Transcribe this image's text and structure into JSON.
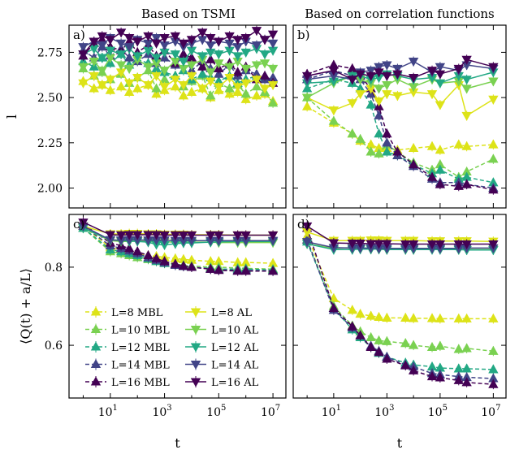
{
  "figure": {
    "col_titles": [
      "Based on TSMI",
      "Based on correlation functions"
    ]
  },
  "series_styles": [
    {
      "name": "L=8 MBL",
      "color": "#dde318",
      "dashed": true,
      "marker": "up"
    },
    {
      "name": "L=10 MBL",
      "color": "#7ad151",
      "dashed": true,
      "marker": "up"
    },
    {
      "name": "L=12 MBL",
      "color": "#22a884",
      "dashed": true,
      "marker": "up"
    },
    {
      "name": "L=14 MBL",
      "color": "#414487",
      "dashed": true,
      "marker": "up"
    },
    {
      "name": "L=16 MBL",
      "color": "#440154",
      "dashed": true,
      "marker": "up"
    },
    {
      "name": "L=8 AL",
      "color": "#dde318",
      "dashed": false,
      "marker": "down"
    },
    {
      "name": "L=10 AL",
      "color": "#7ad151",
      "dashed": false,
      "marker": "down"
    },
    {
      "name": "L=12 AL",
      "color": "#22a884",
      "dashed": false,
      "marker": "down"
    },
    {
      "name": "L=14 AL",
      "color": "#414487",
      "dashed": false,
      "marker": "down"
    },
    {
      "name": "L=16 AL",
      "color": "#440154",
      "dashed": false,
      "marker": "down"
    }
  ],
  "chart_data": [
    {
      "panel": "a)",
      "type": "line",
      "xscale": "log",
      "xlim": [
        0.3,
        30000000
      ],
      "ylim": [
        1.89,
        2.9
      ],
      "yticks": [
        2.0,
        2.25,
        2.5,
        2.75
      ],
      "ytick_labels": [
        "2.00",
        "2.25",
        "2.50",
        "2.75"
      ],
      "ylabel": "l",
      "xlabel": "",
      "show_xtick_labels": false,
      "show_ytick_labels": true,
      "x": [
        1,
        2.5,
        5,
        10,
        25,
        50,
        100,
        250,
        500,
        1000,
        2500,
        5000,
        10000,
        25000,
        50000,
        100000,
        250000,
        500000,
        1000000,
        2500000,
        5000000,
        10000000
      ],
      "series": [
        {
          "values": [
            2.59,
            2.55,
            2.57,
            2.54,
            2.56,
            2.53,
            2.55,
            2.57,
            2.52,
            2.54,
            2.56,
            2.51,
            2.53,
            2.55,
            2.5,
            2.54,
            2.52,
            2.53,
            2.49,
            2.51,
            2.52,
            2.48
          ]
        },
        {
          "values": [
            2.66,
            2.62,
            2.64,
            2.6,
            2.63,
            2.58,
            2.61,
            2.65,
            2.55,
            2.6,
            2.62,
            2.56,
            2.59,
            2.62,
            2.51,
            2.58,
            2.55,
            2.57,
            2.52,
            2.56,
            2.53,
            2.47
          ]
        },
        {
          "values": [
            2.7,
            2.67,
            2.72,
            2.69,
            2.74,
            2.68,
            2.71,
            2.69,
            2.66,
            2.64,
            2.62,
            2.65,
            2.6,
            2.63,
            2.61,
            2.59,
            2.62,
            2.58,
            2.6,
            2.62,
            2.61,
            2.6
          ]
        },
        {
          "values": [
            2.76,
            2.72,
            2.78,
            2.73,
            2.77,
            2.72,
            2.7,
            2.74,
            2.69,
            2.72,
            2.68,
            2.73,
            2.65,
            2.7,
            2.66,
            2.63,
            2.68,
            2.62,
            2.65,
            2.63,
            2.6,
            2.61
          ]
        },
        {
          "values": [
            2.73,
            2.8,
            2.82,
            2.78,
            2.76,
            2.81,
            2.75,
            2.79,
            2.73,
            2.76,
            2.69,
            2.74,
            2.72,
            2.67,
            2.71,
            2.66,
            2.69,
            2.64,
            2.67,
            2.6,
            2.62,
            2.58
          ]
        },
        {
          "values": [
            2.58,
            2.62,
            2.57,
            2.6,
            2.64,
            2.58,
            2.61,
            2.57,
            2.62,
            2.56,
            2.6,
            2.57,
            2.62,
            2.55,
            2.59,
            2.56,
            2.61,
            2.56,
            2.58,
            2.6,
            2.55,
            2.57
          ]
        },
        {
          "values": [
            2.67,
            2.7,
            2.65,
            2.72,
            2.68,
            2.66,
            2.71,
            2.67,
            2.69,
            2.65,
            2.7,
            2.66,
            2.68,
            2.71,
            2.64,
            2.69,
            2.67,
            2.7,
            2.66,
            2.68,
            2.69,
            2.66
          ]
        },
        {
          "values": [
            2.74,
            2.77,
            2.72,
            2.76,
            2.74,
            2.77,
            2.73,
            2.76,
            2.72,
            2.75,
            2.74,
            2.7,
            2.76,
            2.73,
            2.75,
            2.74,
            2.76,
            2.73,
            2.75,
            2.77,
            2.74,
            2.76
          ]
        },
        {
          "values": [
            2.78,
            2.81,
            2.79,
            2.83,
            2.8,
            2.78,
            2.82,
            2.8,
            2.83,
            2.79,
            2.81,
            2.78,
            2.8,
            2.82,
            2.79,
            2.81,
            2.8,
            2.78,
            2.81,
            2.79,
            2.82,
            2.8
          ]
        },
        {
          "values": [
            2.74,
            2.81,
            2.84,
            2.82,
            2.86,
            2.83,
            2.81,
            2.84,
            2.8,
            2.83,
            2.84,
            2.8,
            2.82,
            2.86,
            2.83,
            2.81,
            2.84,
            2.82,
            2.83,
            2.87,
            2.82,
            2.85
          ]
        }
      ]
    },
    {
      "panel": "b)",
      "type": "line",
      "xscale": "log",
      "xlim": [
        0.3,
        30000000
      ],
      "ylim": [
        1.89,
        2.9
      ],
      "yticks": [
        2.0,
        2.25,
        2.5,
        2.75
      ],
      "ytick_labels": [
        "2.00",
        "2.25",
        "2.50",
        "2.75"
      ],
      "ylabel": "",
      "xlabel": "",
      "show_xtick_labels": false,
      "show_ytick_labels": false,
      "x": [
        1,
        10,
        50,
        100,
        250,
        500,
        1000,
        2500,
        10000,
        50000,
        100000,
        500000,
        1000000,
        10000000
      ],
      "series": [
        {
          "values": [
            2.45,
            2.36,
            2.3,
            2.26,
            2.24,
            2.22,
            2.22,
            2.21,
            2.22,
            2.23,
            2.21,
            2.24,
            2.23,
            2.24
          ]
        },
        {
          "values": [
            2.5,
            2.37,
            2.3,
            2.27,
            2.2,
            2.19,
            2.24,
            2.2,
            2.14,
            2.1,
            2.13,
            2.06,
            2.09,
            2.16
          ]
        },
        {
          "values": [
            2.55,
            2.6,
            2.58,
            2.55,
            2.46,
            2.3,
            2.2,
            2.18,
            2.13,
            2.08,
            2.1,
            2.05,
            2.06,
            2.03
          ]
        },
        {
          "values": [
            2.6,
            2.65,
            2.62,
            2.6,
            2.52,
            2.4,
            2.25,
            2.18,
            2.12,
            2.05,
            2.03,
            2.03,
            2.02,
            2.0
          ]
        },
        {
          "values": [
            2.63,
            2.68,
            2.66,
            2.62,
            2.55,
            2.45,
            2.3,
            2.2,
            2.13,
            2.06,
            2.02,
            2.01,
            2.02,
            1.99
          ]
        },
        {
          "values": [
            2.5,
            2.43,
            2.47,
            2.52,
            2.55,
            2.48,
            2.52,
            2.51,
            2.53,
            2.52,
            2.46,
            2.57,
            2.4,
            2.49
          ]
        },
        {
          "values": [
            2.5,
            2.58,
            2.62,
            2.6,
            2.58,
            2.55,
            2.57,
            2.6,
            2.56,
            2.6,
            2.58,
            2.59,
            2.55,
            2.59
          ]
        },
        {
          "values": [
            2.58,
            2.59,
            2.62,
            2.62,
            2.6,
            2.61,
            2.63,
            2.62,
            2.6,
            2.61,
            2.58,
            2.62,
            2.6,
            2.64
          ]
        },
        {
          "values": [
            2.6,
            2.62,
            2.6,
            2.64,
            2.65,
            2.67,
            2.68,
            2.66,
            2.7,
            2.64,
            2.67,
            2.65,
            2.68,
            2.66
          ]
        },
        {
          "values": [
            2.62,
            2.65,
            2.6,
            2.63,
            2.62,
            2.64,
            2.62,
            2.63,
            2.61,
            2.65,
            2.63,
            2.66,
            2.71,
            2.67
          ]
        }
      ]
    },
    {
      "panel": "c)",
      "type": "line",
      "xscale": "log",
      "xlim": [
        0.3,
        30000000
      ],
      "ylim": [
        0.465,
        0.935
      ],
      "yticks": [
        0.6,
        0.8
      ],
      "ytick_labels": [
        "0.6",
        "0.8"
      ],
      "ylabel": "⟨Q(t) + a/L⟩",
      "xlabel": "t",
      "show_xtick_labels": true,
      "show_ytick_labels": true,
      "xticks": [
        10,
        1000,
        100000,
        10000000
      ],
      "xtick_labels": [
        [
          "10",
          "1"
        ],
        [
          "10",
          "3"
        ],
        [
          "10",
          "5"
        ],
        [
          "10",
          "7"
        ]
      ],
      "x": [
        1,
        10,
        25,
        50,
        100,
        250,
        500,
        1000,
        2500,
        5000,
        10000,
        50000,
        100000,
        500000,
        1000000,
        10000000
      ],
      "series": [
        {
          "values": [
            0.905,
            0.85,
            0.845,
            0.84,
            0.835,
            0.83,
            0.828,
            0.825,
            0.822,
            0.82,
            0.818,
            0.815,
            0.815,
            0.812,
            0.812,
            0.81
          ]
        },
        {
          "values": [
            0.9,
            0.84,
            0.835,
            0.83,
            0.825,
            0.82,
            0.815,
            0.81,
            0.808,
            0.805,
            0.803,
            0.8,
            0.8,
            0.798,
            0.797,
            0.795
          ]
        },
        {
          "values": [
            0.9,
            0.845,
            0.84,
            0.835,
            0.83,
            0.822,
            0.815,
            0.81,
            0.805,
            0.803,
            0.8,
            0.797,
            0.795,
            0.795,
            0.795,
            0.793
          ]
        },
        {
          "values": [
            0.905,
            0.855,
            0.848,
            0.842,
            0.835,
            0.825,
            0.818,
            0.812,
            0.805,
            0.802,
            0.8,
            0.795,
            0.793,
            0.792,
            0.792,
            0.79
          ]
        },
        {
          "values": [
            0.91,
            0.862,
            0.855,
            0.848,
            0.84,
            0.83,
            0.822,
            0.815,
            0.808,
            0.803,
            0.8,
            0.795,
            0.792,
            0.79,
            0.79,
            0.79
          ]
        },
        {
          "values": [
            0.905,
            0.885,
            0.885,
            0.886,
            0.886,
            0.885,
            0.885,
            0.884,
            0.884,
            0.884,
            0.883,
            0.883,
            0.883,
            0.882,
            0.882,
            0.882
          ]
        },
        {
          "values": [
            0.9,
            0.868,
            0.866,
            0.866,
            0.867,
            0.866,
            0.865,
            0.865,
            0.864,
            0.864,
            0.864,
            0.864,
            0.863,
            0.863,
            0.863,
            0.863
          ]
        },
        {
          "values": [
            0.9,
            0.87,
            0.868,
            0.867,
            0.866,
            0.864,
            0.858,
            0.857,
            0.86,
            0.862,
            0.862,
            0.864,
            0.865,
            0.866,
            0.866,
            0.866
          ]
        },
        {
          "values": [
            0.905,
            0.87,
            0.869,
            0.87,
            0.87,
            0.869,
            0.869,
            0.869,
            0.868,
            0.868,
            0.868,
            0.868,
            0.868,
            0.868,
            0.868,
            0.868
          ]
        },
        {
          "values": [
            0.915,
            0.883,
            0.882,
            0.883,
            0.883,
            0.883,
            0.883,
            0.882,
            0.882,
            0.882,
            0.882,
            0.882,
            0.882,
            0.882,
            0.882,
            0.882
          ]
        }
      ],
      "legend": {
        "placement": "lower-left",
        "columns": [
          [
            "L=8 MBL",
            "L=10 MBL",
            "L=12 MBL",
            "L=14 MBL",
            "L=16 MBL"
          ],
          [
            "L=8 AL",
            "L=10 AL",
            "L=12 AL",
            "L=14 AL",
            "L=16 AL"
          ]
        ]
      }
    },
    {
      "panel": "d)",
      "type": "line",
      "xscale": "log",
      "xlim": [
        0.3,
        30000000
      ],
      "ylim": [
        0.465,
        0.935
      ],
      "yticks": [
        0.6,
        0.8
      ],
      "ytick_labels": [
        "0.6",
        "0.8"
      ],
      "ylabel": "",
      "xlabel": "t",
      "show_xtick_labels": true,
      "show_ytick_labels": false,
      "xticks": [
        10,
        1000,
        100000,
        10000000
      ],
      "xtick_labels": [
        [
          "10",
          "1"
        ],
        [
          "10",
          "3"
        ],
        [
          "10",
          "5"
        ],
        [
          "10",
          "7"
        ]
      ],
      "x": [
        1,
        10,
        50,
        100,
        250,
        500,
        1000,
        5000,
        10000,
        50000,
        100000,
        500000,
        1000000,
        10000000
      ],
      "series": [
        {
          "values": [
            0.88,
            0.72,
            0.69,
            0.68,
            0.675,
            0.672,
            0.67,
            0.67,
            0.669,
            0.669,
            0.668,
            0.668,
            0.668,
            0.668
          ]
        },
        {
          "values": [
            0.87,
            0.7,
            0.65,
            0.635,
            0.62,
            0.612,
            0.61,
            0.605,
            0.6,
            0.595,
            0.598,
            0.59,
            0.592,
            0.585
          ]
        },
        {
          "values": [
            0.865,
            0.695,
            0.64,
            0.62,
            0.595,
            0.58,
            0.57,
            0.555,
            0.55,
            0.545,
            0.542,
            0.54,
            0.54,
            0.538
          ]
        },
        {
          "values": [
            0.87,
            0.69,
            0.645,
            0.625,
            0.598,
            0.585,
            0.57,
            0.55,
            0.545,
            0.528,
            0.525,
            0.52,
            0.518,
            0.515
          ]
        },
        {
          "values": [
            0.9,
            0.695,
            0.648,
            0.625,
            0.595,
            0.582,
            0.565,
            0.548,
            0.535,
            0.52,
            0.517,
            0.51,
            0.505,
            0.5
          ]
        },
        {
          "values": [
            0.89,
            0.868,
            0.868,
            0.868,
            0.869,
            0.869,
            0.868,
            0.868,
            0.868,
            0.867,
            0.867,
            0.867,
            0.867,
            0.866
          ]
        },
        {
          "values": [
            0.86,
            0.848,
            0.85,
            0.848,
            0.846,
            0.846,
            0.845,
            0.845,
            0.845,
            0.846,
            0.846,
            0.845,
            0.845,
            0.845
          ]
        },
        {
          "values": [
            0.86,
            0.845,
            0.845,
            0.846,
            0.846,
            0.846,
            0.845,
            0.845,
            0.845,
            0.845,
            0.845,
            0.845,
            0.844,
            0.844
          ]
        },
        {
          "values": [
            0.865,
            0.85,
            0.849,
            0.849,
            0.849,
            0.848,
            0.848,
            0.848,
            0.848,
            0.848,
            0.848,
            0.848,
            0.849,
            0.849
          ]
        },
        {
          "values": [
            0.905,
            0.862,
            0.861,
            0.861,
            0.86,
            0.86,
            0.86,
            0.859,
            0.859,
            0.859,
            0.859,
            0.859,
            0.859,
            0.859
          ]
        }
      ]
    }
  ]
}
